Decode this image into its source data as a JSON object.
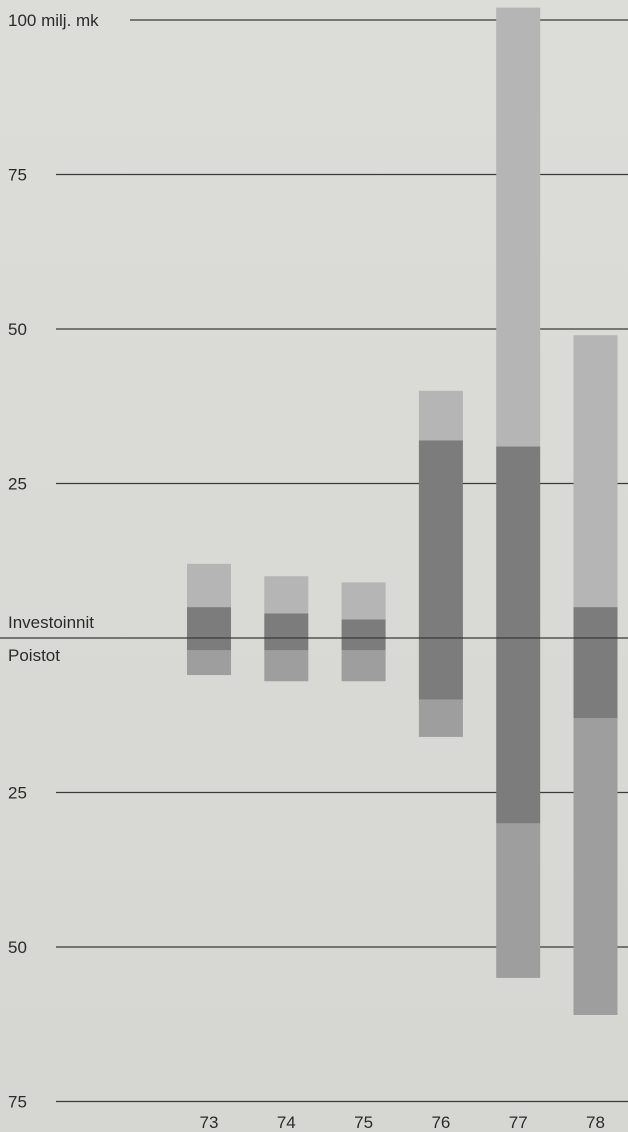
{
  "chart_data": {
    "type": "bar",
    "stacked": true,
    "diverging": true,
    "y_unit_label": "100 milj. mk",
    "categories": [
      "73",
      "74",
      "75",
      "76",
      "77",
      "78"
    ],
    "above_label": "Investoinnit",
    "below_label": "Poistot",
    "y_ticks_above": [
      {
        "value": 100,
        "label": "100 milj. mk"
      },
      {
        "value": 75,
        "label": "75"
      },
      {
        "value": 50,
        "label": "50"
      },
      {
        "value": 25,
        "label": "25"
      }
    ],
    "y_ticks_below": [
      {
        "value": -25,
        "label": "25"
      },
      {
        "value": -50,
        "label": "50"
      },
      {
        "value": -75,
        "label": "75"
      }
    ],
    "ylim": [
      -75,
      100
    ],
    "series_above": [
      {
        "color": "#7c7c7c",
        "values": [
          5,
          4,
          3,
          32,
          31,
          5
        ]
      },
      {
        "color": "#b5b5b5",
        "values": [
          7,
          6,
          6,
          8,
          71,
          44
        ]
      }
    ],
    "series_below": [
      {
        "color": "#7c7c7c",
        "values": [
          2,
          2,
          2,
          10,
          30,
          13
        ]
      },
      {
        "color": "#9e9e9e",
        "values": [
          4,
          5,
          5,
          6,
          25,
          48
        ]
      }
    ],
    "gridline_color": "#3a3a3a"
  }
}
